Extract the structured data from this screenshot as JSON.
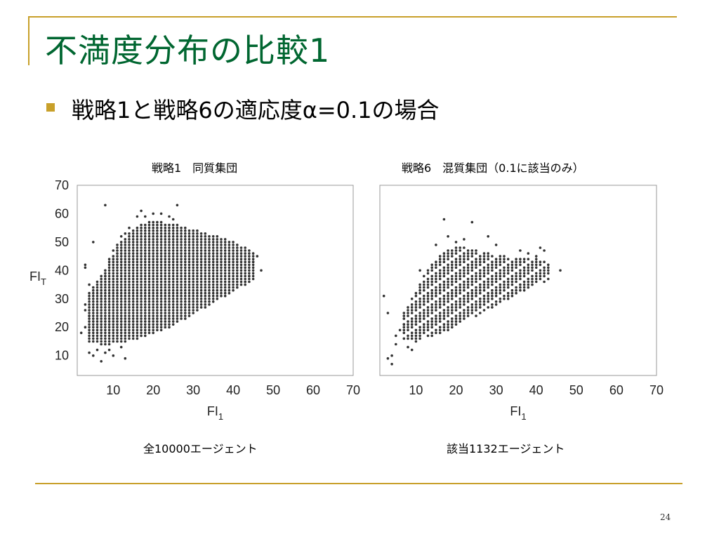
{
  "slide": {
    "title": "不満度分布の比較1",
    "bullet": "戦略1と戦略6の適応度α=0.1の場合",
    "page_number": "24"
  },
  "colors": {
    "accent": "#c8a02a",
    "title": "#006630",
    "points": "#333333"
  },
  "chart_data": [
    {
      "type": "scatter",
      "title": "戦略1　同質集団",
      "caption": "全10000エージェント",
      "xlabel": "FI1",
      "ylabel": "FIT",
      "xlim": [
        1,
        70
      ],
      "ylim": [
        3,
        70
      ],
      "xticks": [
        10,
        20,
        30,
        40,
        50,
        60,
        70
      ],
      "yticks": [
        10,
        20,
        30,
        40,
        50,
        60,
        70
      ],
      "grid": false,
      "points": [
        [
          8,
          63
        ],
        [
          26,
          63
        ],
        [
          17,
          61
        ],
        [
          20,
          60
        ],
        [
          22,
          60
        ],
        [
          16,
          59
        ],
        [
          18,
          59
        ],
        [
          24,
          59
        ],
        [
          25,
          58
        ],
        [
          3,
          42
        ],
        [
          3,
          41
        ],
        [
          5,
          50
        ],
        [
          4,
          35
        ],
        [
          3,
          28
        ],
        [
          3,
          26
        ],
        [
          4,
          24
        ],
        [
          3,
          20
        ],
        [
          2,
          18
        ],
        [
          4,
          11
        ],
        [
          5,
          10
        ],
        [
          6,
          12
        ],
        [
          7,
          8
        ],
        [
          8,
          11
        ],
        [
          9,
          12
        ],
        [
          10,
          10
        ],
        [
          12,
          13
        ],
        [
          13,
          9
        ],
        [
          7,
          30
        ],
        [
          8,
          38
        ],
        [
          9,
          44
        ],
        [
          10,
          47
        ],
        [
          11,
          49
        ],
        [
          12,
          52
        ],
        [
          13,
          53
        ],
        [
          14,
          55
        ],
        [
          44,
          38
        ],
        [
          45,
          43
        ],
        [
          47,
          40
        ],
        [
          46,
          45
        ],
        [
          43,
          36
        ]
      ],
      "density": {
        "x_range": [
          4,
          45
        ],
        "upper": [
          [
            4,
            32
          ],
          [
            8,
            40
          ],
          [
            12,
            50
          ],
          [
            16,
            55
          ],
          [
            20,
            57
          ],
          [
            25,
            56
          ],
          [
            30,
            54
          ],
          [
            35,
            52
          ],
          [
            40,
            50
          ],
          [
            45,
            46
          ]
        ],
        "lower": [
          [
            4,
            15
          ],
          [
            8,
            14
          ],
          [
            12,
            15
          ],
          [
            16,
            16
          ],
          [
            20,
            18
          ],
          [
            25,
            21
          ],
          [
            30,
            25
          ],
          [
            35,
            29
          ],
          [
            40,
            33
          ],
          [
            45,
            37
          ]
        ]
      }
    },
    {
      "type": "scatter",
      "title": "戦略6　混質集団（0.1に該当のみ）",
      "caption": "該当1132エージェント",
      "xlabel": "FI1",
      "ylabel": "",
      "xlim": [
        1,
        70
      ],
      "ylim": [
        3,
        70
      ],
      "xticks": [
        10,
        20,
        30,
        40,
        50,
        60,
        70
      ],
      "yticks": [],
      "grid": false,
      "points": [
        [
          17,
          58
        ],
        [
          24,
          57
        ],
        [
          2,
          31
        ],
        [
          3,
          25
        ],
        [
          3,
          9
        ],
        [
          4,
          7
        ],
        [
          4,
          10
        ],
        [
          5,
          14
        ],
        [
          5,
          17
        ],
        [
          6,
          19
        ],
        [
          7,
          21
        ],
        [
          8,
          13
        ],
        [
          9,
          12
        ],
        [
          10,
          15
        ],
        [
          11,
          16
        ],
        [
          11,
          40
        ],
        [
          12,
          38
        ],
        [
          46,
          40
        ],
        [
          42,
          47
        ],
        [
          41,
          48
        ],
        [
          40,
          45
        ],
        [
          38,
          46
        ],
        [
          36,
          47
        ],
        [
          30,
          49
        ],
        [
          28,
          52
        ],
        [
          22,
          51
        ],
        [
          20,
          50
        ],
        [
          18,
          52
        ],
        [
          15,
          49
        ]
      ],
      "density": {
        "x_range": [
          7,
          43
        ],
        "upper": [
          [
            7,
            25
          ],
          [
            10,
            32
          ],
          [
            14,
            42
          ],
          [
            18,
            47
          ],
          [
            22,
            48
          ],
          [
            26,
            46
          ],
          [
            30,
            45
          ],
          [
            35,
            44
          ],
          [
            40,
            44
          ],
          [
            43,
            42
          ]
        ],
        "lower": [
          [
            7,
            16
          ],
          [
            10,
            16
          ],
          [
            14,
            17
          ],
          [
            18,
            19
          ],
          [
            22,
            22
          ],
          [
            26,
            25
          ],
          [
            30,
            28
          ],
          [
            35,
            32
          ],
          [
            40,
            35
          ],
          [
            43,
            37
          ]
        ]
      }
    }
  ]
}
